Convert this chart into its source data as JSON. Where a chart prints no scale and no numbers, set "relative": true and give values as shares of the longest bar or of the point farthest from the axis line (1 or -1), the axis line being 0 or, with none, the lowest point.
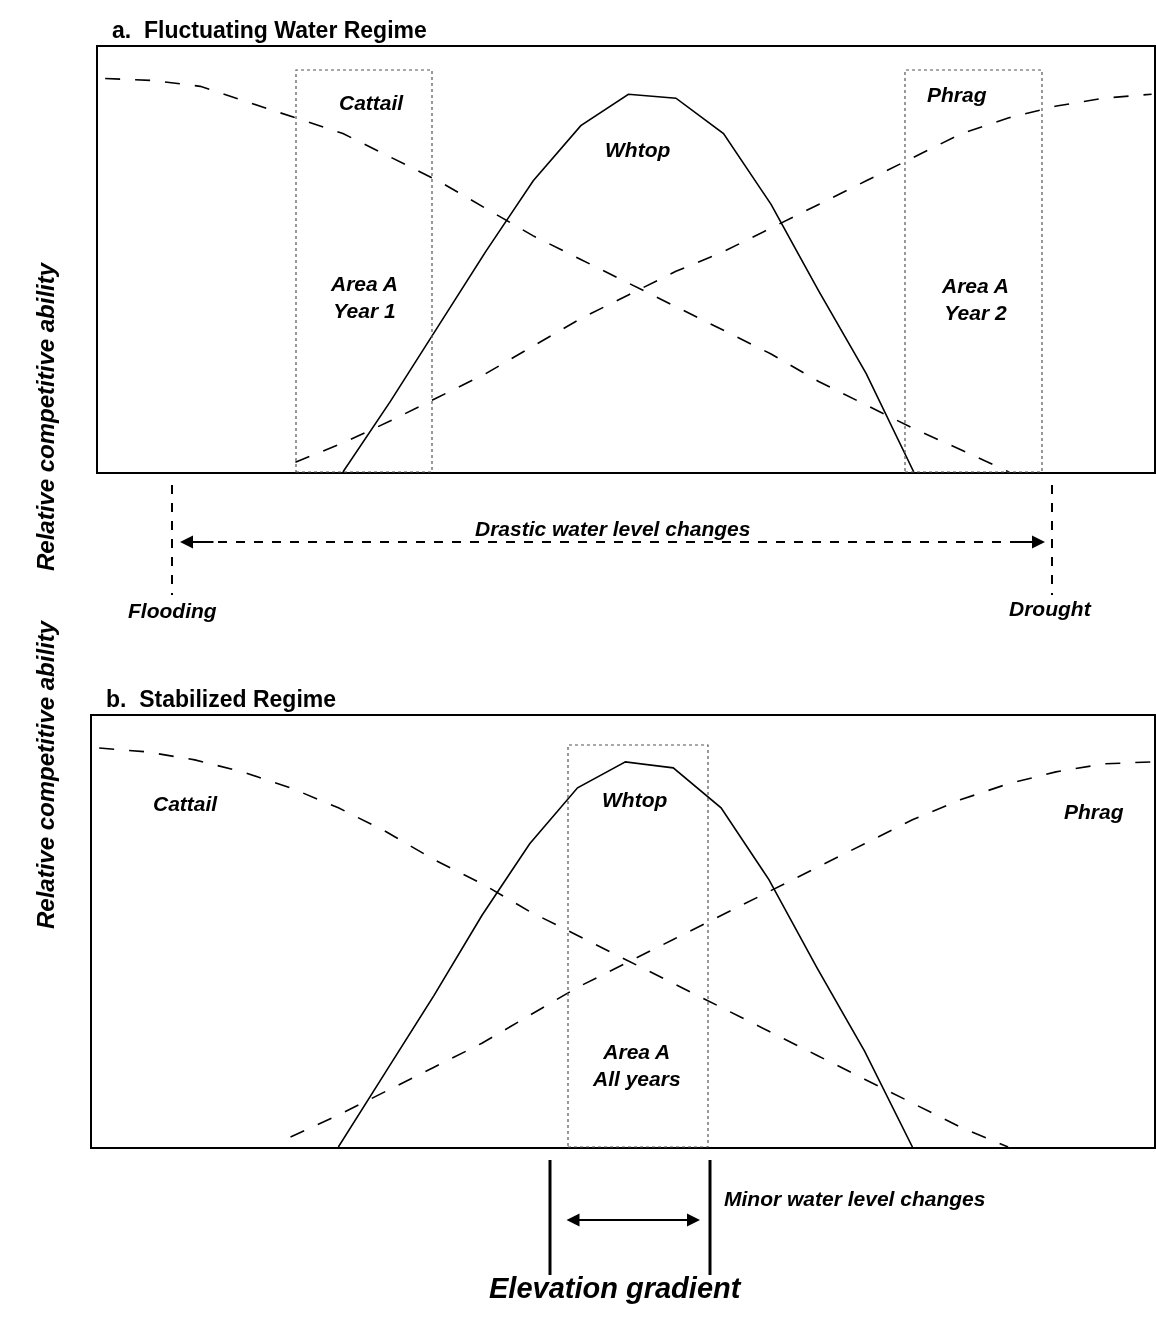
{
  "chart_data": [
    {
      "type": "line",
      "title": "a.  Fluctuating Water Regime",
      "ylabel": "Relative competitive ability",
      "relative": true,
      "categories": [
        null,
        null,
        null,
        null,
        null,
        null,
        null,
        null,
        null,
        null,
        null,
        null,
        null,
        null,
        null,
        null,
        null,
        null,
        null,
        null,
        null,
        null,
        null
      ],
      "series": [
        {
          "name": "Cattail",
          "color": "#000000",
          "line_style": "dashed",
          "values": [
            1.0,
            0.995,
            0.98,
            0.94,
            0.9,
            0.86,
            0.8,
            0.74,
            0.67,
            0.6,
            0.54,
            0.48,
            0.42,
            0.36,
            0.3,
            0.23,
            0.17,
            0.11,
            0.056,
            0,
            null,
            null,
            null
          ]
        },
        {
          "name": "Phrag",
          "color": "#000000",
          "line_style": "dashed",
          "values": [
            null,
            null,
            null,
            null,
            0.025,
            0.074,
            0.13,
            0.19,
            0.25,
            0.32,
            0.39,
            0.45,
            0.51,
            0.56,
            0.62,
            0.68,
            0.74,
            0.8,
            0.86,
            0.9,
            0.93,
            0.95,
            0.96
          ]
        },
        {
          "name": "Whtop",
          "color": "#000000",
          "line_style": "solid",
          "values": [
            null,
            null,
            null,
            null,
            null,
            0,
            0.18,
            0.37,
            0.56,
            0.74,
            0.88,
            0.96,
            0.95,
            0.86,
            0.68,
            0.46,
            0.25,
            0,
            null,
            null,
            null,
            null,
            null
          ]
        }
      ],
      "annotations": [
        "Area A\nYear 1",
        "Area A\nYear 2",
        "Drastic water level changes",
        "Flooding",
        "Drought"
      ]
    },
    {
      "type": "line",
      "title": "b.  Stabilized Regime",
      "ylabel": "Relative competitive ability",
      "xlabel": "Elevation gradient",
      "relative": true,
      "categories": [
        null,
        null,
        null,
        null,
        null,
        null,
        null,
        null,
        null,
        null,
        null,
        null,
        null,
        null,
        null,
        null,
        null,
        null,
        null,
        null,
        null,
        null,
        null
      ],
      "series": [
        {
          "name": "Cattail",
          "color": "#000000",
          "line_style": "dashed",
          "values": [
            1.0,
            0.99,
            0.97,
            0.94,
            0.9,
            0.85,
            0.79,
            0.72,
            0.66,
            0.59,
            0.53,
            0.47,
            0.41,
            0.35,
            0.29,
            0.23,
            0.17,
            0.11,
            0.05,
            0,
            null,
            null,
            null
          ]
        },
        {
          "name": "Phrag",
          "color": "#000000",
          "line_style": "dashed",
          "values": [
            null,
            null,
            null,
            null,
            0.025,
            0.08,
            0.14,
            0.2,
            0.26,
            0.33,
            0.4,
            0.46,
            0.52,
            0.58,
            0.64,
            0.7,
            0.76,
            0.82,
            0.87,
            0.91,
            0.94,
            0.96,
            0.965
          ]
        },
        {
          "name": "Whtop",
          "color": "#000000",
          "line_style": "solid",
          "values": [
            null,
            null,
            null,
            null,
            null,
            0,
            0.19,
            0.38,
            0.58,
            0.76,
            0.9,
            0.965,
            0.95,
            0.85,
            0.67,
            0.45,
            0.24,
            0,
            null,
            null,
            null,
            null,
            null
          ]
        }
      ],
      "annotations": [
        "Area A\nAll years",
        "Minor water level changes"
      ]
    }
  ]
}
